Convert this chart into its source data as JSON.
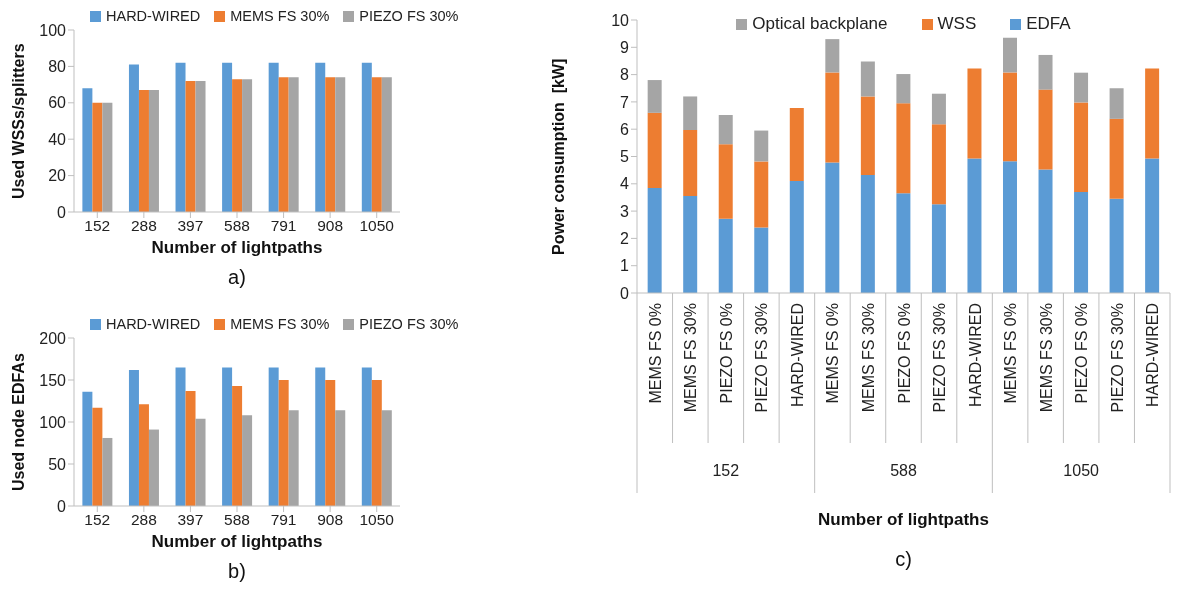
{
  "chart_data": [
    {
      "type": "bar",
      "xlabel": "Number of lightpaths",
      "ylabel": "Used WSSs/splitters",
      "annotations": [
        "a)"
      ],
      "categories": [
        "152",
        "288",
        "397",
        "588",
        "791",
        "908",
        "1050"
      ],
      "series": [
        {
          "name": "HARD-WIRED",
          "color": "#5b9bd5",
          "values": [
            68,
            81,
            82,
            82,
            82,
            82,
            82
          ]
        },
        {
          "name": "MEMS FS 30%",
          "color": "#ed7d31",
          "values": [
            60,
            67,
            72,
            73,
            74,
            74,
            74
          ]
        },
        {
          "name": "PIEZO FS 30%",
          "color": "#a5a5a5",
          "values": [
            60,
            67,
            72,
            73,
            74,
            74,
            74
          ]
        }
      ],
      "ylim": [
        0,
        100
      ],
      "yticks": [
        0,
        20,
        40,
        60,
        80,
        100
      ],
      "legend": "top"
    },
    {
      "type": "bar",
      "xlabel": "Number of lightpaths",
      "ylabel": "Used node EDFAs",
      "annotations": [
        "b)"
      ],
      "categories": [
        "152",
        "288",
        "397",
        "588",
        "791",
        "908",
        "1050"
      ],
      "series": [
        {
          "name": "HARD-WIRED",
          "color": "#5b9bd5",
          "values": [
            136,
            162,
            165,
            165,
            165,
            165,
            165
          ]
        },
        {
          "name": "MEMS FS 30%",
          "color": "#ed7d31",
          "values": [
            117,
            121,
            137,
            143,
            150,
            150,
            150
          ]
        },
        {
          "name": "PIEZO FS 30%",
          "color": "#a5a5a5",
          "values": [
            81,
            91,
            104,
            108,
            114,
            114,
            114
          ]
        }
      ],
      "ylim": [
        0,
        200
      ],
      "yticks": [
        0,
        50,
        100,
        150,
        200
      ],
      "legend": "top"
    },
    {
      "type": "bar",
      "stacked": true,
      "xlabel": "Number of lightpaths",
      "ylabel": "Power consumption  [kW]",
      "annotations": [
        "152",
        "588",
        "1050",
        "c)"
      ],
      "categories": [
        "MEMS FS 0%",
        "MEMS FS 30%",
        "PIEZO FS 0%",
        "PIEZO FS 30%",
        "HARD-WIRED",
        "MEMS FS 0%",
        "MEMS FS 30%",
        "PIEZO FS 0%",
        "PIEZO FS 30%",
        "HARD-WIRED",
        "MEMS FS 0%",
        "MEMS FS 30%",
        "PIEZO FS 0%",
        "PIEZO FS 30%",
        "HARD-WIRED"
      ],
      "series": [
        {
          "name": "EDFA",
          "color": "#5b9bd5",
          "values": [
            3.85,
            3.55,
            2.72,
            2.4,
            4.1,
            4.78,
            4.32,
            3.65,
            3.25,
            4.93,
            4.83,
            4.52,
            3.7,
            3.45,
            4.93
          ]
        },
        {
          "name": "WSS",
          "color": "#ed7d31",
          "values": [
            2.75,
            2.42,
            2.73,
            2.42,
            2.68,
            3.3,
            2.88,
            3.3,
            2.93,
            3.29,
            3.25,
            2.93,
            3.28,
            2.93,
            3.29
          ]
        },
        {
          "name": "Optical backplane",
          "color": "#a5a5a5",
          "values": [
            1.2,
            1.23,
            1.07,
            1.13,
            null,
            1.22,
            1.28,
            1.07,
            1.12,
            null,
            1.27,
            1.27,
            1.09,
            1.12,
            null
          ]
        }
      ],
      "ylim": [
        0,
        10
      ],
      "yticks": [
        0,
        1,
        2,
        3,
        4,
        5,
        6,
        7,
        8,
        9,
        10
      ],
      "legend": "top"
    }
  ]
}
